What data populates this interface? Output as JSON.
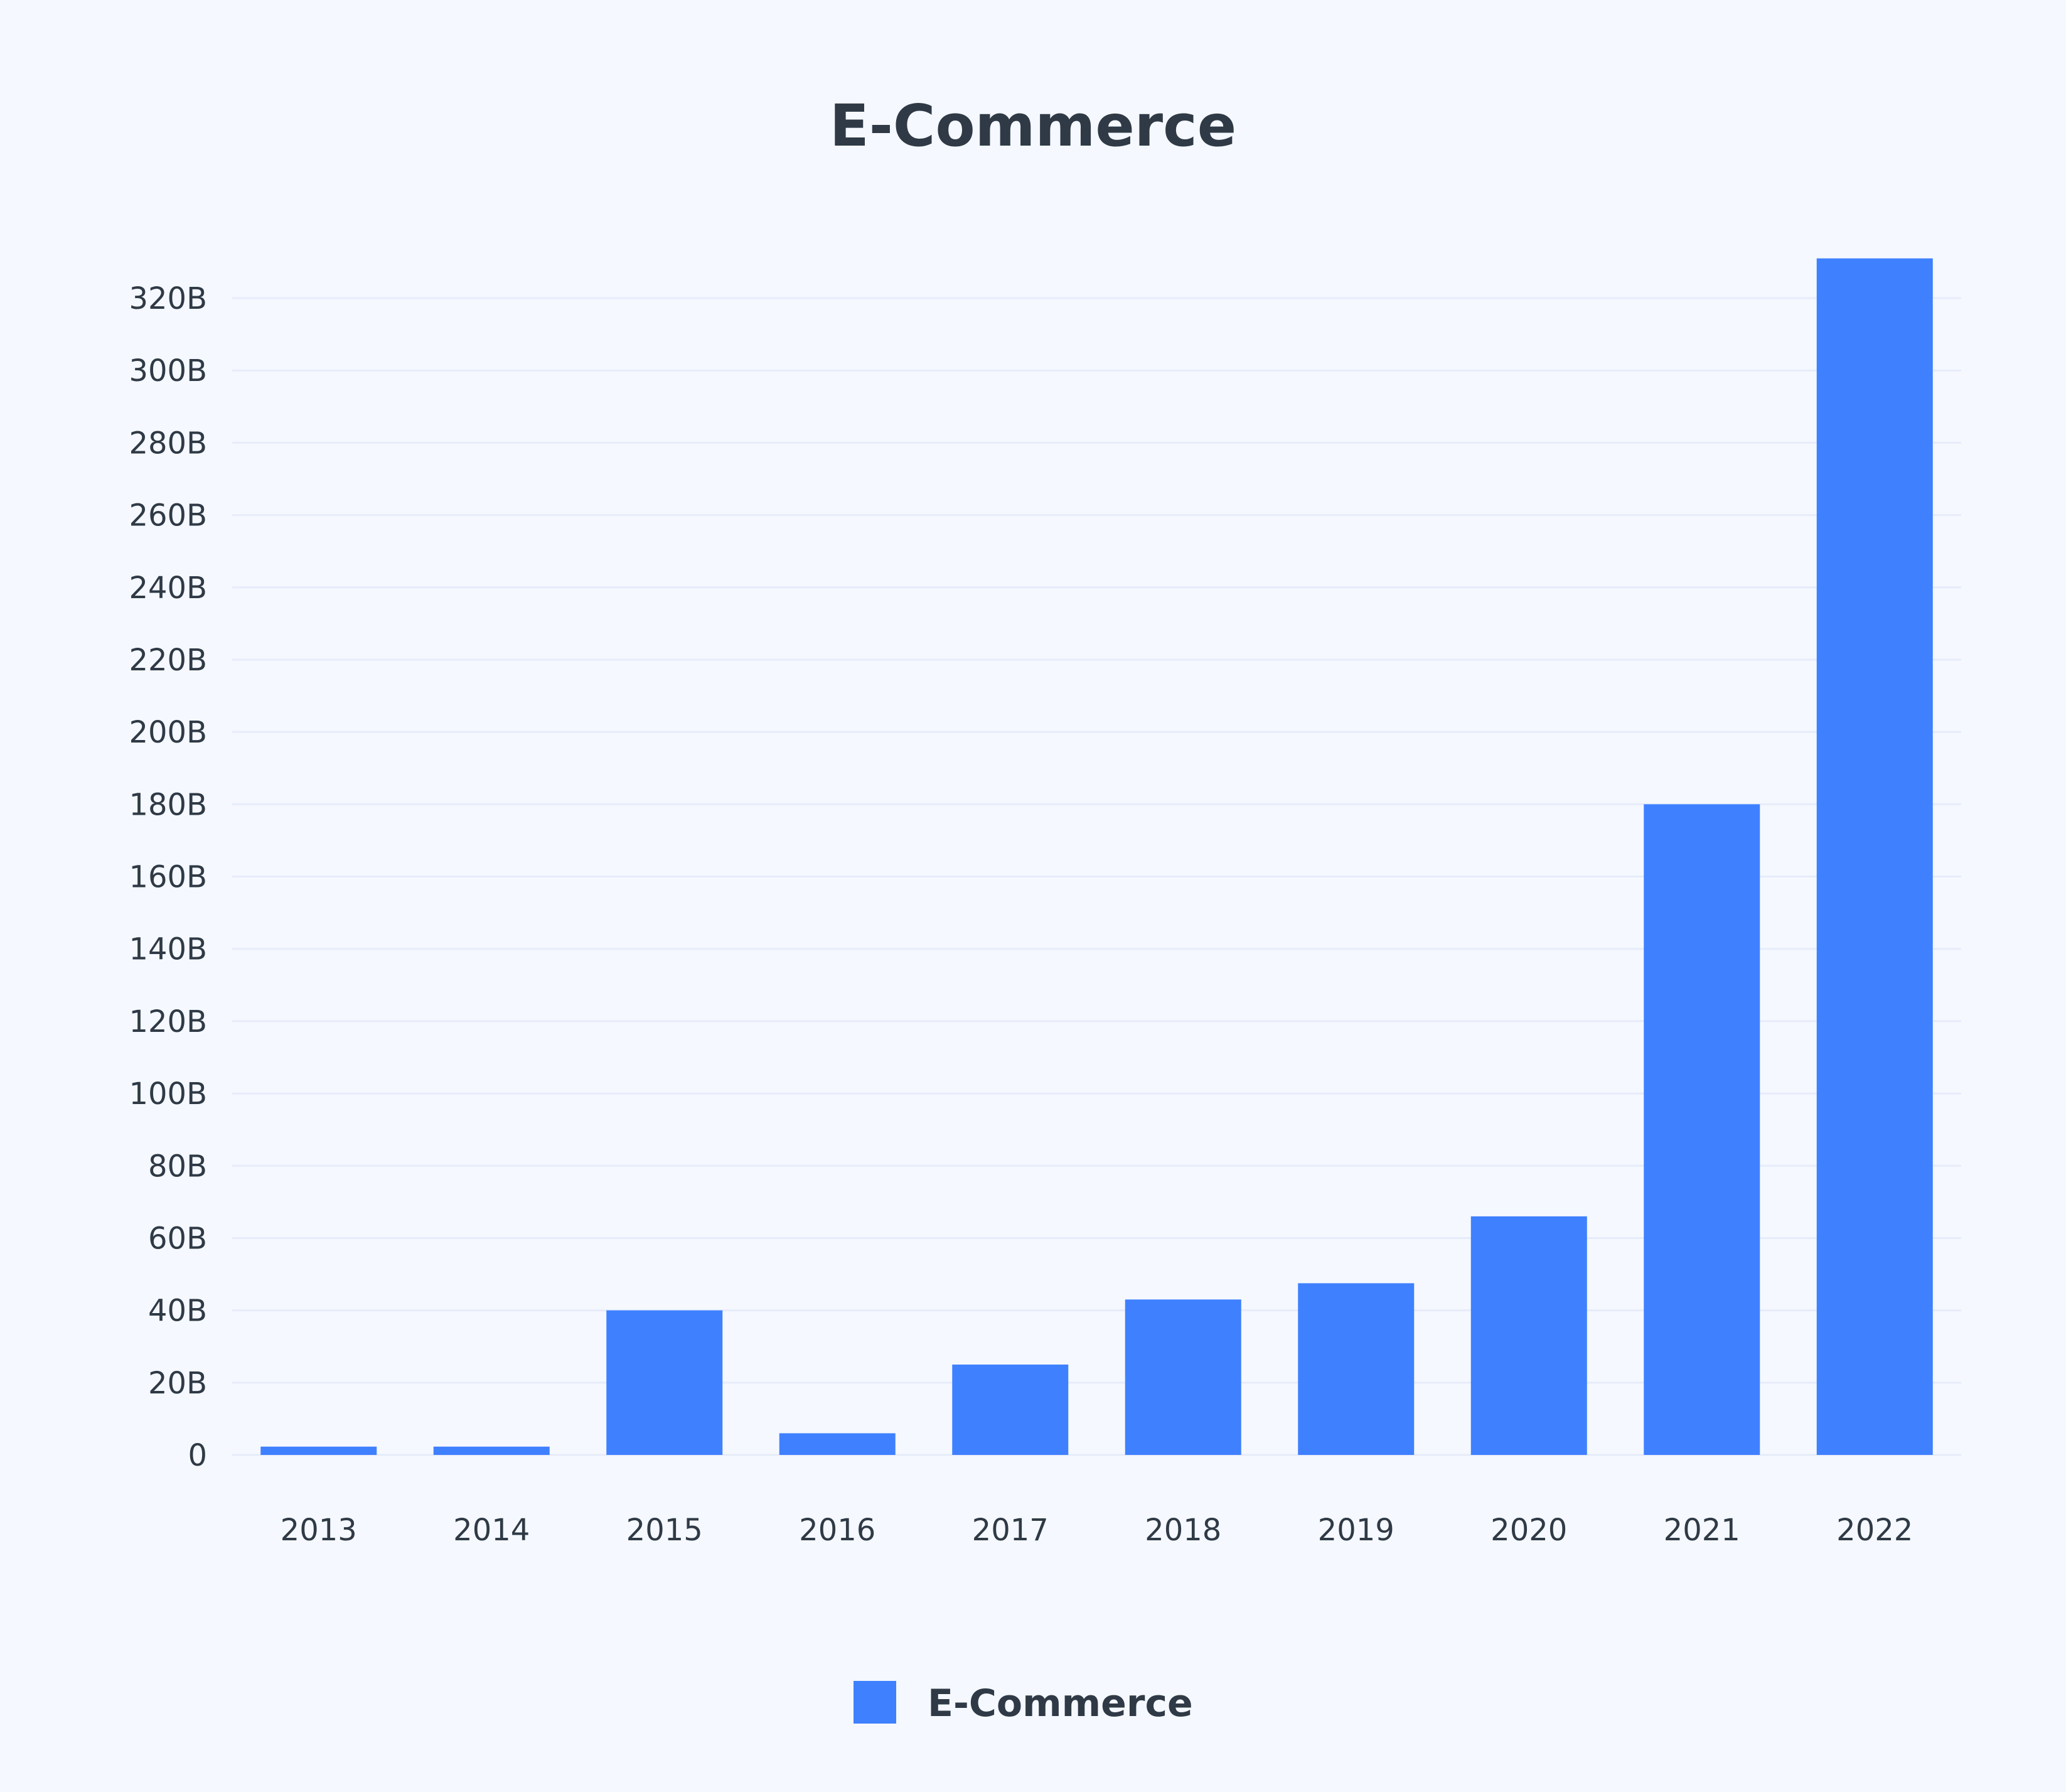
{
  "chart_data": {
    "type": "bar",
    "title": "E-Commerce",
    "xlabel": "",
    "ylabel": "",
    "categories": [
      "2013",
      "2014",
      "2015",
      "2016",
      "2017",
      "2018",
      "2019",
      "2020",
      "2021",
      "2022"
    ],
    "series": [
      {
        "name": "E-Commerce",
        "color": "#3f80ff",
        "values": [
          2.3,
          2.3,
          40,
          6,
          25,
          43,
          47.5,
          66,
          180,
          331
        ]
      }
    ],
    "ylim": [
      0,
      320
    ],
    "yticks": [
      0,
      20,
      40,
      60,
      80,
      100,
      120,
      140,
      160,
      180,
      200,
      220,
      240,
      260,
      280,
      300,
      320
    ],
    "ytick_labels": [
      "0",
      "20B",
      "40B",
      "60B",
      "80B",
      "100B",
      "120B",
      "140B",
      "160B",
      "180B",
      "200B",
      "220B",
      "240B",
      "260B",
      "280B",
      "300B",
      "320B"
    ],
    "grid": true,
    "legend_placement": "bottom",
    "background": "#f5f8fe"
  }
}
